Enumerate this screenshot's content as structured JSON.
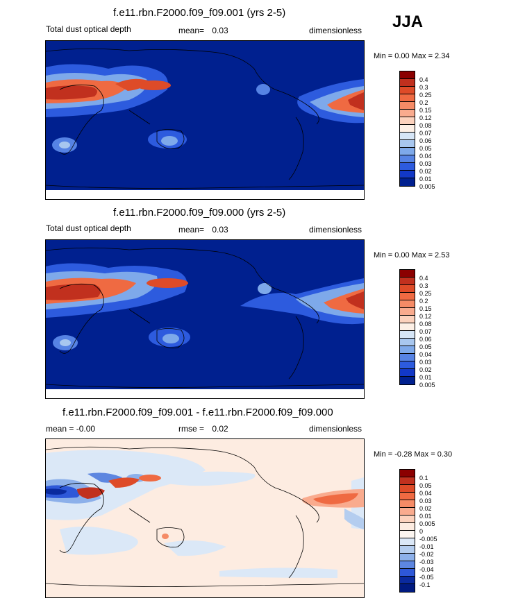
{
  "season": "JJA",
  "panels": [
    {
      "title": "f.e11.rbn.F2000.f09_f09.001 (yrs 2-5)",
      "left_label": "Total dust optical depth",
      "stat_label": "mean=",
      "stat_value": "0.03",
      "units": "dimensionless",
      "minmax": "Min =   0.00 Max =   2.34",
      "colorbar_labels": [
        "0.4",
        "0.3",
        "0.25",
        "0.2",
        "0.15",
        "0.12",
        "0.08",
        "0.07",
        "0.06",
        "0.05",
        "0.04",
        "0.03",
        "0.02",
        "0.01",
        "0.005"
      ],
      "colorbar_colors": [
        "#8b0000",
        "#c1301e",
        "#de4b28",
        "#ef6a42",
        "#f58b66",
        "#f9ab8e",
        "#fcd2bd",
        "#fdf0e6",
        "#d6e6f7",
        "#a8c7ef",
        "#7ea9ea",
        "#5683e4",
        "#2d5bde",
        "#1238c7",
        "#00208f"
      ]
    },
    {
      "title": "f.e11.rbn.F2000.f09_f09.000 (yrs 2-5)",
      "left_label": "Total dust optical depth",
      "stat_label": "mean=",
      "stat_value": "0.03",
      "units": "dimensionless",
      "minmax": "Min =   0.00 Max =   2.53",
      "colorbar_labels": [
        "0.4",
        "0.3",
        "0.25",
        "0.2",
        "0.15",
        "0.12",
        "0.08",
        "0.07",
        "0.06",
        "0.05",
        "0.04",
        "0.03",
        "0.02",
        "0.01",
        "0.005"
      ],
      "colorbar_colors": [
        "#8b0000",
        "#c1301e",
        "#de4b28",
        "#ef6a42",
        "#f58b66",
        "#f9ab8e",
        "#fcd2bd",
        "#fdf0e6",
        "#d6e6f7",
        "#a8c7ef",
        "#7ea9ea",
        "#5683e4",
        "#2d5bde",
        "#1238c7",
        "#00208f"
      ]
    },
    {
      "title": "f.e11.rbn.F2000.f09_f09.001 - f.e11.rbn.F2000.f09_f09.000",
      "left_label": "mean = -0.00",
      "stat_label": "rmse =",
      "stat_value": "0.02",
      "units": "dimensionless",
      "minmax": "Min =  -0.28 Max =   0.30",
      "colorbar_labels": [
        "0.1",
        "0.05",
        "0.04",
        "0.03",
        "0.02",
        "0.01",
        "0.005",
        "0",
        "-0.005",
        "-0.01",
        "-0.02",
        "-0.03",
        "-0.04",
        "-0.05",
        "-0.1"
      ],
      "colorbar_colors": [
        "#8b0000",
        "#c1301e",
        "#de4b28",
        "#ef6a42",
        "#f58b66",
        "#f9ab8e",
        "#fcd2bd",
        "#fdece1",
        "#fbf5f0",
        "#dbe8f7",
        "#b4cdef",
        "#8cb0ea",
        "#5d86e0",
        "#2e58d8",
        "#0a2a9e",
        "#001a80"
      ]
    }
  ]
}
